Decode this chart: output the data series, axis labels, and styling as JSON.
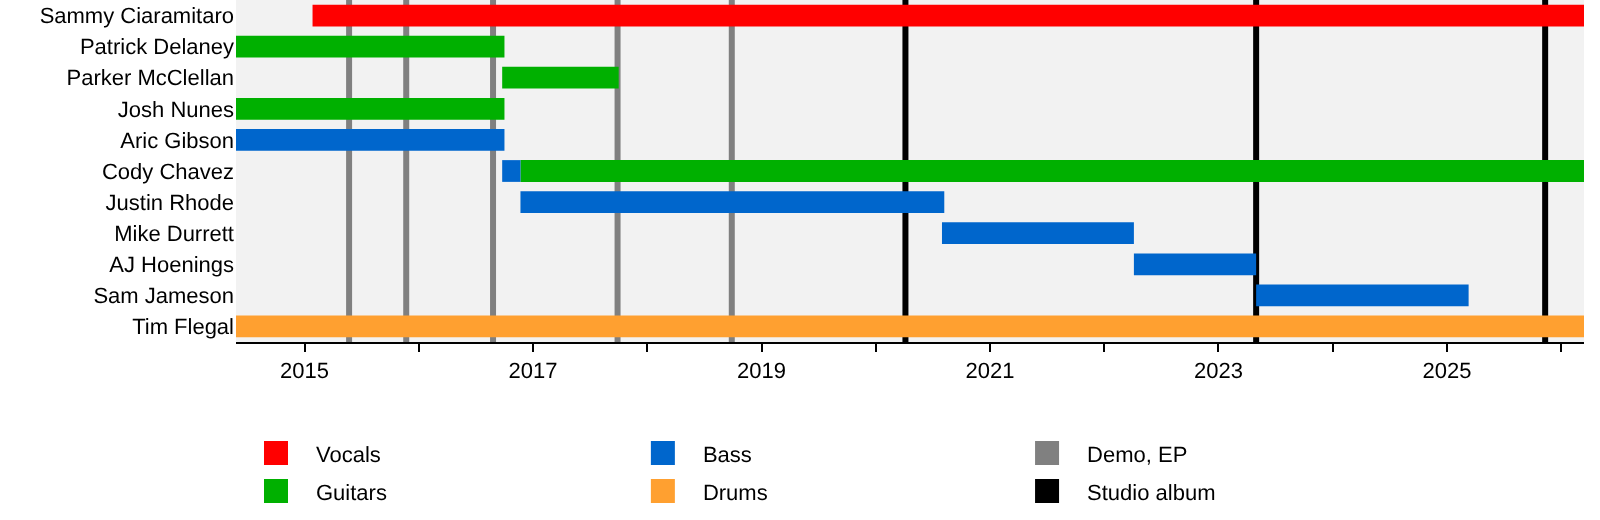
{
  "chart_data": {
    "type": "bar",
    "orientation": "horizontal",
    "categories": [
      "Sammy Ciaramitaro",
      "Patrick Delaney",
      "Parker McClellan",
      "Josh Nunes",
      "Aric Gibson",
      "Cody Chavez",
      "Justin Rhode",
      "Mike Durrett",
      "AJ Hoenings",
      "Sam Jameson",
      "Tim Flegal"
    ],
    "series": [
      {
        "name": "Vocals",
        "color": "#ff0000",
        "base": [
          2015.07,
          null,
          null,
          null,
          null,
          null,
          null,
          null,
          null,
          null,
          null
        ],
        "values": [
          11.13,
          null,
          null,
          null,
          null,
          null,
          null,
          null,
          null,
          null,
          null
        ]
      },
      {
        "name": "Guitars",
        "color": "#00b000",
        "base": [
          null,
          2014.4,
          2016.73,
          2014.4,
          null,
          2016.89,
          null,
          null,
          null,
          null,
          null
        ],
        "values": [
          null,
          2.35,
          1.02,
          2.35,
          null,
          9.31,
          null,
          null,
          null,
          null,
          null
        ]
      },
      {
        "name": "Bass",
        "color": "#0066cc",
        "base": [
          null,
          null,
          null,
          null,
          2014.4,
          2016.73,
          2016.89,
          2020.58,
          2022.26,
          2023.33,
          null
        ],
        "values": [
          null,
          null,
          null,
          null,
          2.35,
          0.16,
          3.71,
          1.68,
          1.07,
          1.86,
          null
        ]
      },
      {
        "name": "Drums",
        "color": "#ffa030",
        "base": [
          null,
          null,
          null,
          null,
          null,
          null,
          null,
          null,
          null,
          null,
          2014.4
        ],
        "values": [
          null,
          null,
          null,
          null,
          null,
          null,
          null,
          null,
          null,
          null,
          11.8
        ]
      }
    ],
    "xlim": [
      2014.4,
      2026.2
    ],
    "xticks": [
      2015,
      {
        "value": 2016,
        "label": null
      },
      2017,
      {
        "value": 2018,
        "label": null
      },
      2019,
      {
        "value": 2020,
        "label": null
      },
      2021,
      {
        "value": 2022,
        "label": null
      },
      2023,
      {
        "value": 2024,
        "label": null
      },
      2025,
      {
        "value": 2026,
        "label": null
      }
    ],
    "ref_lines": [
      {
        "axis": "x",
        "value": 2015.39,
        "label": "Demo, EP",
        "color": "#808080"
      },
      {
        "axis": "x",
        "value": 2015.89,
        "color": "#808080"
      },
      {
        "axis": "x",
        "value": 2016.65,
        "color": "#808080"
      },
      {
        "axis": "x",
        "value": 2017.74,
        "color": "#808080"
      },
      {
        "axis": "x",
        "value": 2018.74,
        "color": "#808080"
      },
      {
        "axis": "x",
        "value": 2020.26,
        "label": "Studio album",
        "color": "#000000"
      },
      {
        "axis": "x",
        "value": 2023.33,
        "color": "#000000"
      },
      {
        "axis": "x",
        "value": 2025.86,
        "color": "#000000"
      }
    ],
    "grid": false,
    "legend": "bottom"
  }
}
